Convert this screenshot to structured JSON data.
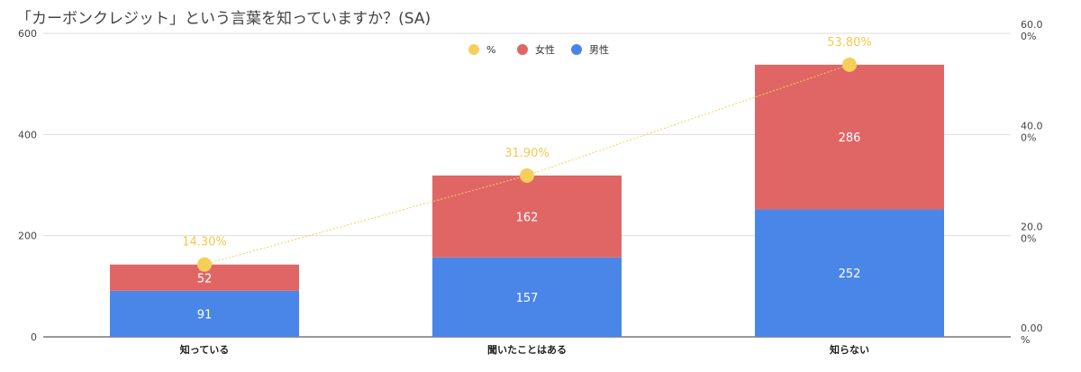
{
  "chart_data": {
    "type": "bar",
    "stacked": true,
    "title": "「カーボンクレジット」という言葉を知っていますか？(SA)",
    "categories": [
      "知っている",
      "聞いたことはある",
      "知らない"
    ],
    "series": [
      {
        "name": "男性",
        "values": [
          91,
          157,
          252
        ],
        "color": "#4a86e8"
      },
      {
        "name": "女性",
        "values": [
          52,
          162,
          286
        ],
        "color": "#e06666"
      }
    ],
    "line_series": {
      "name": "%",
      "values": [
        14.3,
        31.9,
        53.8
      ],
      "labels": [
        "14.30%",
        "31.90%",
        "53.80%"
      ],
      "color": "#f6cf5a",
      "axis": "right"
    },
    "ylim": [
      0,
      600
    ],
    "yticks": [
      "0",
      "200",
      "400",
      "600"
    ],
    "y2lim": [
      0,
      60
    ],
    "y2ticks": [
      {
        "value": 0,
        "line1": "0.00",
        "line2": "%"
      },
      {
        "value": 20,
        "line1": "20.0",
        "line2": "0%"
      },
      {
        "value": 40,
        "line1": "40.0",
        "line2": "0%"
      },
      {
        "value": 60,
        "line1": "60.0",
        "line2": "0%"
      }
    ],
    "legend_position": "top-center",
    "grid": true
  }
}
